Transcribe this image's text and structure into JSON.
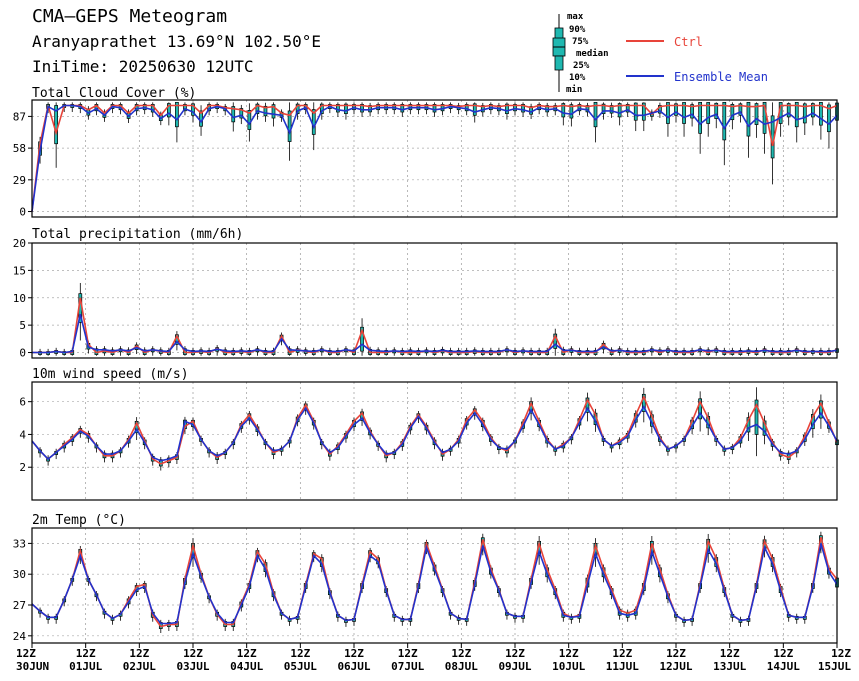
{
  "header": {
    "title": "CMA—GEPS Meteogram",
    "location": "Aranyaprathet 13.69°N 102.50°E",
    "init": "IniTime: 20250630 12UTC"
  },
  "legend": {
    "box_labels": [
      "max",
      "90%",
      "75%",
      "median",
      "25%",
      "10%",
      "min"
    ],
    "ctrl_label": "Ctrl",
    "mean_label": "Ensemble Mean",
    "colors": {
      "ctrl": "#e8443a",
      "mean": "#2233cc",
      "box": "#1fb8b0"
    }
  },
  "x_ticks": [
    {
      "hour": "12Z",
      "date": "30JUN"
    },
    {
      "hour": "12Z",
      "date": "01JUL"
    },
    {
      "hour": "12Z",
      "date": "02JUL"
    },
    {
      "hour": "12Z",
      "date": "03JUL"
    },
    {
      "hour": "12Z",
      "date": "04JUL"
    },
    {
      "hour": "12Z",
      "date": "05JUL"
    },
    {
      "hour": "12Z",
      "date": "06JUL"
    },
    {
      "hour": "12Z",
      "date": "07JUL"
    },
    {
      "hour": "12Z",
      "date": "08JUL"
    },
    {
      "hour": "12Z",
      "date": "09JUL"
    },
    {
      "hour": "12Z",
      "date": "10JUL"
    },
    {
      "hour": "12Z",
      "date": "11JUL"
    },
    {
      "hour": "12Z",
      "date": "12JUL"
    },
    {
      "hour": "12Z",
      "date": "13JUL"
    },
    {
      "hour": "12Z",
      "date": "14JUL"
    },
    {
      "hour": "12Z",
      "date": "15JUL"
    }
  ],
  "chart_data": [
    {
      "type": "box-line",
      "title": "Total Cloud Cover (%)",
      "ylim": [
        -5,
        102
      ],
      "yticks": [
        0,
        29,
        58,
        87
      ],
      "grid": true,
      "ctrl": [
        0,
        62,
        97,
        72,
        97,
        97,
        97,
        93,
        97,
        90,
        97,
        97,
        90,
        97,
        97,
        97,
        88,
        97,
        97,
        97,
        97,
        90,
        97,
        97,
        95,
        94,
        93,
        90,
        97,
        95,
        96,
        90,
        88,
        97,
        97,
        90,
        97,
        97,
        97,
        97,
        97,
        97,
        96,
        97,
        97,
        97,
        97,
        97,
        97,
        97,
        97,
        97,
        97,
        96,
        97,
        97,
        96,
        97,
        96,
        97,
        97,
        97,
        95,
        97,
        96,
        96,
        97,
        96,
        97,
        96,
        97,
        97,
        96,
        97,
        97,
        97,
        97,
        89,
        96,
        97,
        97,
        97,
        96,
        97,
        97,
        97,
        97,
        96,
        97,
        96,
        96,
        97,
        60,
        97,
        97,
        97,
        96,
        97,
        97,
        94,
        97
      ],
      "mean": [
        0,
        55,
        96,
        92,
        97,
        97,
        96,
        90,
        94,
        88,
        96,
        95,
        87,
        94,
        95,
        93,
        85,
        90,
        84,
        94,
        91,
        82,
        94,
        96,
        94,
        86,
        88,
        80,
        92,
        90,
        89,
        88,
        72,
        92,
        95,
        77,
        92,
        96,
        93,
        92,
        95,
        93,
        93,
        95,
        95,
        95,
        93,
        95,
        95,
        95,
        93,
        94,
        96,
        95,
        94,
        91,
        93,
        95,
        94,
        92,
        94,
        93,
        91,
        95,
        93,
        94,
        90,
        89,
        94,
        93,
        84,
        92,
        92,
        90,
        93,
        88,
        88,
        90,
        92,
        86,
        91,
        86,
        89,
        80,
        86,
        89,
        76,
        88,
        91,
        78,
        85,
        80,
        82,
        86,
        90,
        84,
        86,
        90,
        85,
        80,
        88
      ]
    },
    {
      "type": "box-line",
      "title": "Total precipitation (mm/6h)",
      "ylim": [
        -1,
        20
      ],
      "yticks": [
        0,
        5,
        10,
        15,
        20
      ],
      "grid": true,
      "ctrl": [
        0,
        0,
        0,
        0.2,
        0,
        0,
        10,
        1.5,
        0,
        0.3,
        0,
        0.5,
        0,
        1.2,
        0,
        0.5,
        0.2,
        0,
        3,
        0,
        0,
        0.2,
        0,
        0.7,
        0,
        0,
        0.2,
        0,
        0.5,
        0,
        0,
        3,
        0,
        0.5,
        0.2,
        0,
        0.5,
        0,
        0,
        0.5,
        0,
        4,
        0,
        0,
        0,
        0.3,
        0,
        0,
        0,
        0.3,
        0,
        0.3,
        0,
        0,
        0,
        0.2,
        0,
        0,
        0,
        0.5,
        0,
        0.3,
        0,
        0,
        0,
        3,
        0,
        0.5,
        0,
        0,
        0,
        1.5,
        0,
        0.5,
        0,
        0,
        0,
        0.5,
        0,
        0.5,
        0,
        0,
        0,
        0.5,
        0,
        0.5,
        0,
        0,
        0,
        0.2,
        0,
        0.5,
        0,
        0,
        0,
        0.5,
        0,
        0.2,
        0,
        0,
        0.5
      ],
      "mean": [
        0,
        0,
        0,
        0.2,
        0,
        0.2,
        7,
        1,
        0.5,
        0.5,
        0.3,
        0.5,
        0.3,
        0.9,
        0.3,
        0.5,
        0.3,
        0.2,
        2,
        0.5,
        0.2,
        0.3,
        0.2,
        0.6,
        0.3,
        0.2,
        0.3,
        0.2,
        0.5,
        0.2,
        0.2,
        2.5,
        0.5,
        0.4,
        0.3,
        0.2,
        0.5,
        0.2,
        0.2,
        0.5,
        0.3,
        1.5,
        0.4,
        0.3,
        0.2,
        0.3,
        0.2,
        0.3,
        0.2,
        0.3,
        0.2,
        0.4,
        0.2,
        0.2,
        0.2,
        0.3,
        0.2,
        0.2,
        0.2,
        0.5,
        0.2,
        0.3,
        0.2,
        0.2,
        0.2,
        1.5,
        0.4,
        0.4,
        0.2,
        0.2,
        0.2,
        1,
        0.3,
        0.4,
        0.2,
        0.2,
        0.2,
        0.5,
        0.3,
        0.4,
        0.2,
        0.2,
        0.2,
        0.5,
        0.3,
        0.4,
        0.2,
        0.2,
        0.2,
        0.3,
        0.2,
        0.4,
        0.2,
        0.2,
        0.2,
        0.4,
        0.2,
        0.2,
        0.2,
        0.2,
        0.4
      ]
    },
    {
      "type": "box-line",
      "title": "10m wind speed (m/s)",
      "ylim": [
        0,
        7.2
      ],
      "yticks": [
        2,
        4,
        6
      ],
      "grid": true,
      "ctrl": [
        3.6,
        3.0,
        2.5,
        2.9,
        3.4,
        3.8,
        4.3,
        4.0,
        3.3,
        2.7,
        2.7,
        3.0,
        3.7,
        4.7,
        3.6,
        2.5,
        2.2,
        2.4,
        2.6,
        4.5,
        4.8,
        3.7,
        3.0,
        2.6,
        2.9,
        3.5,
        4.6,
        5.2,
        4.4,
        3.5,
        2.9,
        3.1,
        3.6,
        5.0,
        5.8,
        4.8,
        3.5,
        2.8,
        3.3,
        4.0,
        4.8,
        5.3,
        4.2,
        3.4,
        2.7,
        2.9,
        3.5,
        4.5,
        5.2,
        4.5,
        3.6,
        2.8,
        3.1,
        3.7,
        4.9,
        5.5,
        4.8,
        3.8,
        3.2,
        3.0,
        3.6,
        4.7,
        5.9,
        4.8,
        3.7,
        3.1,
        3.4,
        3.8,
        4.9,
        6.1,
        5.2,
        3.7,
        3.3,
        3.6,
        4.0,
        5.2,
        6.3,
        5.1,
        3.8,
        3.1,
        3.3,
        3.7,
        4.8,
        6.0,
        5.0,
        3.7,
        3.1,
        3.2,
        3.8,
        4.9,
        5.8,
        4.7,
        3.5,
        2.8,
        2.6,
        3.0,
        3.9,
        5.1,
        5.9,
        4.7,
        3.5
      ],
      "mean": [
        3.6,
        3.0,
        2.5,
        2.9,
        3.3,
        3.7,
        4.2,
        3.9,
        3.3,
        2.8,
        2.8,
        3.0,
        3.6,
        4.3,
        3.5,
        2.6,
        2.4,
        2.5,
        2.7,
        4.8,
        4.6,
        3.7,
        3.0,
        2.7,
        2.9,
        3.5,
        4.5,
        5.0,
        4.3,
        3.5,
        3.0,
        3.1,
        3.6,
        4.9,
        5.6,
        4.7,
        3.5,
        2.9,
        3.2,
        3.9,
        4.6,
        5.0,
        4.1,
        3.4,
        2.8,
        2.9,
        3.4,
        4.4,
        5.1,
        4.4,
        3.5,
        2.9,
        3.1,
        3.6,
        4.7,
        5.3,
        4.6,
        3.7,
        3.2,
        3.1,
        3.6,
        4.5,
        5.5,
        4.6,
        3.6,
        3.1,
        3.3,
        3.8,
        4.7,
        5.6,
        4.8,
        3.7,
        3.3,
        3.5,
        3.9,
        4.9,
        5.7,
        4.7,
        3.7,
        3.1,
        3.3,
        3.7,
        4.5,
        5.3,
        4.6,
        3.7,
        3.1,
        3.2,
        3.6,
        4.4,
        4.6,
        4.2,
        3.4,
        2.9,
        2.8,
        3.0,
        3.7,
        4.6,
        5.3,
        4.5,
        3.6
      ]
    },
    {
      "type": "box-line",
      "title": "2m Temp (°C)",
      "ylim": [
        23.3,
        34.5
      ],
      "yticks": [
        24,
        27,
        30,
        33
      ],
      "grid": true,
      "ctrl": [
        27.1,
        26.4,
        25.8,
        25.8,
        27.5,
        29.5,
        32.3,
        29.5,
        28.0,
        26.3,
        25.7,
        26.1,
        27.5,
        28.8,
        29.0,
        26.0,
        24.9,
        25.1,
        25.1,
        29.5,
        32.8,
        30.0,
        27.8,
        26.1,
        25.1,
        25.1,
        27.2,
        29.0,
        32.2,
        31.0,
        28.2,
        26.2,
        25.6,
        25.8,
        29.0,
        32.0,
        31.5,
        28.3,
        26.0,
        25.5,
        25.6,
        29.0,
        32.2,
        31.5,
        28.5,
        26.0,
        25.6,
        25.6,
        29.0,
        33.0,
        30.8,
        28.5,
        26.2,
        25.7,
        25.6,
        29.3,
        33.4,
        30.5,
        28.5,
        26.2,
        25.9,
        25.9,
        29.5,
        33.0,
        30.5,
        28.5,
        26.2,
        25.8,
        26.0,
        29.5,
        32.8,
        30.5,
        28.5,
        26.5,
        26.2,
        26.5,
        29.0,
        33.0,
        30.5,
        28.0,
        26.0,
        25.5,
        25.6,
        29.0,
        33.2,
        31.5,
        28.6,
        26.0,
        25.5,
        25.6,
        29.0,
        33.2,
        31.5,
        28.7,
        26.0,
        25.8,
        25.8,
        29.0,
        33.6,
        30.5,
        29.5
      ],
      "mean": [
        27.1,
        26.4,
        25.8,
        25.8,
        27.5,
        29.5,
        31.8,
        29.5,
        28.0,
        26.3,
        25.7,
        26.1,
        27.3,
        28.5,
        28.8,
        26.2,
        25.2,
        25.2,
        25.3,
        29.2,
        32.0,
        29.8,
        27.8,
        26.2,
        25.3,
        25.3,
        27.0,
        28.8,
        31.8,
        30.5,
        28.0,
        26.2,
        25.6,
        25.8,
        28.8,
        31.8,
        31.0,
        28.2,
        26.0,
        25.5,
        25.6,
        28.8,
        31.8,
        31.2,
        28.4,
        26.0,
        25.6,
        25.6,
        28.8,
        32.6,
        30.5,
        28.4,
        26.2,
        25.7,
        25.6,
        29.0,
        32.8,
        30.2,
        28.4,
        26.2,
        25.9,
        25.9,
        29.2,
        32.2,
        30.0,
        28.2,
        26.0,
        25.8,
        25.9,
        29.0,
        32.0,
        30.0,
        28.2,
        26.2,
        26.0,
        26.2,
        28.6,
        32.2,
        30.0,
        27.8,
        26.0,
        25.5,
        25.6,
        28.8,
        32.4,
        31.0,
        28.4,
        26.0,
        25.5,
        25.6,
        28.8,
        32.6,
        31.0,
        28.4,
        26.0,
        25.8,
        25.8,
        28.8,
        33.0,
        30.2,
        29.0
      ]
    }
  ]
}
